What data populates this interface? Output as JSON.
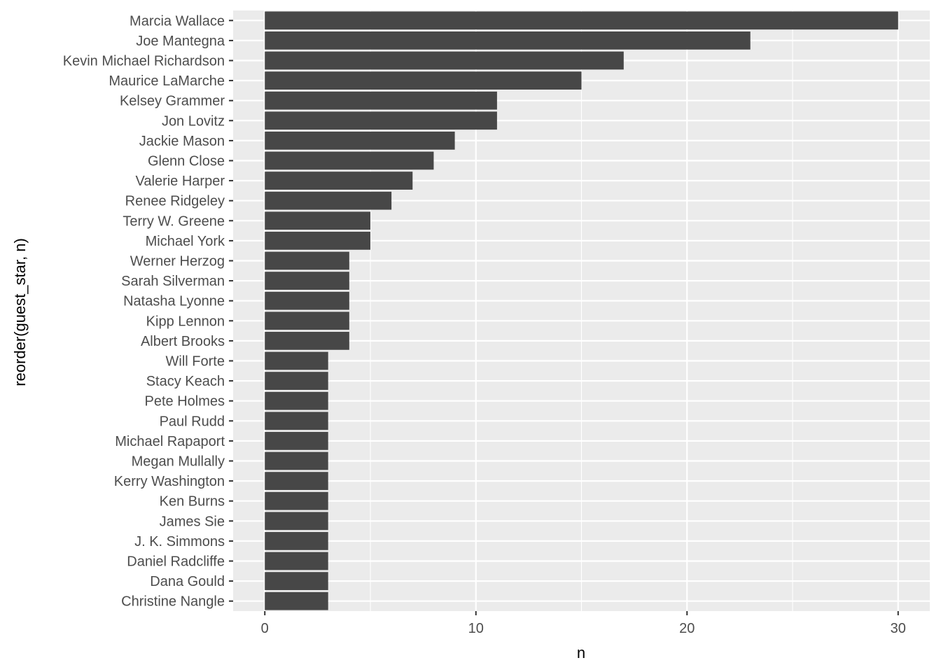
{
  "chart_data": {
    "type": "bar",
    "orientation": "horizontal",
    "xlabel": "n",
    "ylabel": "reorder(guest_star, n)",
    "xlim": [
      -1.5,
      31.5
    ],
    "x_ticks": [
      0,
      10,
      20,
      30
    ],
    "grid": true,
    "categories": [
      "Marcia Wallace",
      "Joe Mantegna",
      "Kevin Michael Richardson",
      "Maurice LaMarche",
      "Kelsey Grammer",
      "Jon Lovitz",
      "Jackie Mason",
      "Glenn Close",
      "Valerie Harper",
      "Renee Ridgeley",
      "Terry W. Greene",
      "Michael York",
      "Werner Herzog",
      "Sarah Silverman",
      "Natasha Lyonne",
      "Kipp Lennon",
      "Albert Brooks",
      "Will Forte",
      "Stacy Keach",
      "Pete Holmes",
      "Paul Rudd",
      "Michael Rapaport",
      "Megan Mullally",
      "Kerry Washington",
      "Ken Burns",
      "James Sie",
      "J. K. Simmons",
      "Daniel Radcliffe",
      "Dana Gould",
      "Christine Nangle"
    ],
    "values": [
      30,
      23,
      17,
      15,
      11,
      11,
      9,
      8,
      7,
      6,
      5,
      5,
      4,
      4,
      4,
      4,
      4,
      3,
      3,
      3,
      3,
      3,
      3,
      3,
      3,
      3,
      3,
      3,
      3,
      3
    ],
    "colors": {
      "panel_background": "#EBEBEB",
      "grid_line": "#FFFFFF",
      "bar_fill": "#474747",
      "text": "#4D4D4D",
      "title_text": "#000000"
    }
  }
}
